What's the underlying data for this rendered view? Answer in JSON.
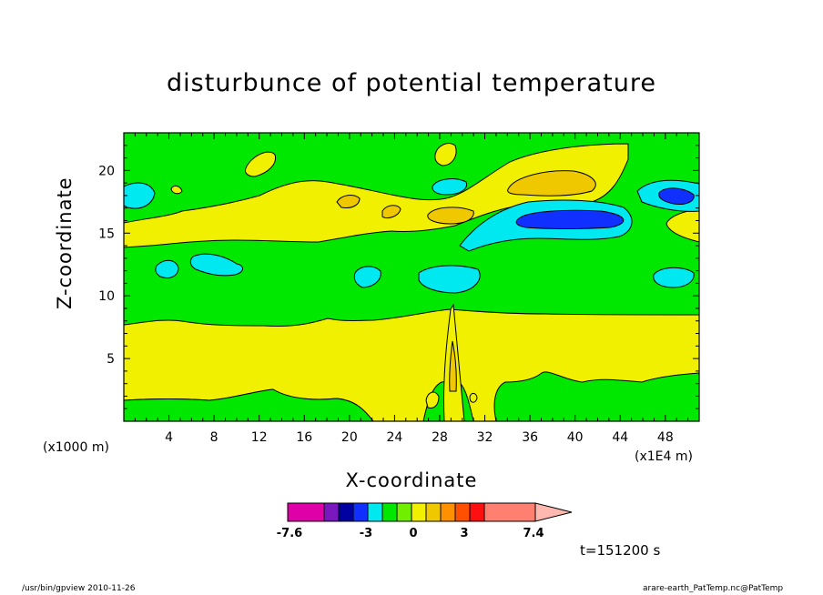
{
  "chart_data": {
    "type": "heatmap",
    "title": "disturbunce of potential temperature",
    "xlabel": "X-coordinate",
    "ylabel": "Z-coordinate",
    "x_unit": "(x1E4 m)",
    "y_unit": "(x1000 m)",
    "xlim": [
      0,
      51
    ],
    "ylim": [
      0,
      23
    ],
    "x_ticks": [
      "4",
      "8",
      "12",
      "16",
      "20",
      "24",
      "28",
      "32",
      "36",
      "40",
      "44",
      "48"
    ],
    "x_tick_values": [
      4,
      8,
      12,
      16,
      20,
      24,
      28,
      32,
      36,
      40,
      44,
      48
    ],
    "y_ticks": [
      "5",
      "10",
      "15",
      "20"
    ],
    "y_tick_values": [
      5,
      10,
      15,
      20
    ],
    "colorbar": {
      "labels": [
        "-7.6",
        "-3",
        "0",
        "3",
        "7.4"
      ],
      "colors": [
        "#e000a8",
        "#7a18c0",
        "#0000a0",
        "#1030ff",
        "#00e8f0",
        "#00e800",
        "#70f000",
        "#f0f000",
        "#f0c800",
        "#ff9000",
        "#ff5000",
        "#ff1010",
        "#ff8070",
        "#ffb8b0"
      ]
    },
    "time": "t=151200 s"
  },
  "footer": {
    "left": "/usr/bin/gpview  2010-11-26",
    "right": "arare-earth_PatTemp.nc@PatTemp"
  }
}
